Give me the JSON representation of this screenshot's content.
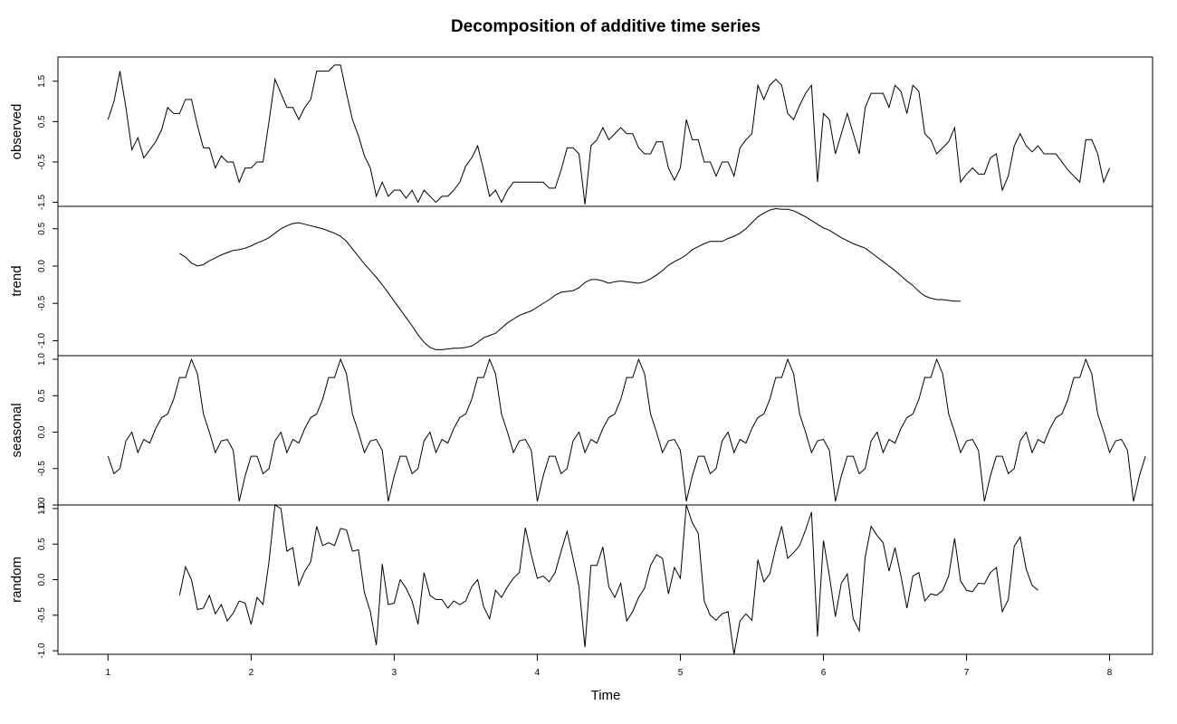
{
  "chart_data": {
    "type": "line",
    "title": "Decomposition of additive time series",
    "xlabel": "Time",
    "xlim": [
      0.65,
      8.3
    ],
    "x_ticks": [
      "1",
      "2",
      "3",
      "4",
      "5",
      "6",
      "7",
      "8"
    ],
    "x_start": 1,
    "x_step": 0.0416667,
    "panels": [
      {
        "name": "observed",
        "ylabel": "observed",
        "ylim": [
          -1.6,
          2.1
        ],
        "y_ticks": [
          -1.5,
          -0.5,
          0.5,
          1.5
        ],
        "y_tick_labels": [
          "-1.5",
          "-0.5",
          "0.5",
          "1.5"
        ],
        "offset": 0,
        "values": [
          0.55,
          1.0,
          1.75,
          0.85,
          -0.2,
          0.1,
          -0.4,
          -0.2,
          0.0,
          0.3,
          0.85,
          0.7,
          0.7,
          1.05,
          1.05,
          0.4,
          -0.15,
          -0.15,
          -0.65,
          -0.35,
          -0.5,
          -0.5,
          -1.0,
          -0.65,
          -0.65,
          -0.5,
          -0.5,
          0.5,
          1.55,
          1.2,
          0.85,
          0.85,
          0.55,
          0.85,
          1.05,
          1.75,
          1.75,
          1.75,
          1.9,
          1.9,
          1.2,
          0.55,
          0.15,
          -0.35,
          -0.65,
          -1.35,
          -1.0,
          -1.35,
          -1.2,
          -1.2,
          -1.4,
          -1.2,
          -1.5,
          -1.2,
          -1.35,
          -1.5,
          -1.35,
          -1.35,
          -1.2,
          -1.0,
          -0.6,
          -0.4,
          -0.1,
          -0.7,
          -1.35,
          -1.2,
          -1.5,
          -1.2,
          -1.0,
          -1.0,
          -1.0,
          -1.0,
          -1.0,
          -1.0,
          -1.15,
          -1.15,
          -0.7,
          -0.15,
          -0.15,
          -0.3,
          -1.55,
          -0.1,
          0.05,
          0.35,
          0.05,
          0.2,
          0.35,
          0.2,
          0.2,
          -0.15,
          -0.3,
          -0.3,
          0.0,
          0.0,
          -0.65,
          -0.95,
          -0.65,
          0.55,
          0.05,
          0.05,
          -0.5,
          -0.5,
          -0.85,
          -0.5,
          -0.5,
          -0.85,
          -0.15,
          0.05,
          0.2,
          1.4,
          1.05,
          1.4,
          1.55,
          1.4,
          0.7,
          0.55,
          0.9,
          1.2,
          1.4,
          -1.0,
          0.7,
          0.55,
          -0.3,
          0.2,
          0.7,
          0.2,
          -0.3,
          0.85,
          1.2,
          1.2,
          1.2,
          0.85,
          1.4,
          1.25,
          0.7,
          1.4,
          1.25,
          0.2,
          0.05,
          -0.3,
          -0.15,
          0.0,
          0.35,
          -1.0,
          -0.8,
          -0.65,
          -0.8,
          -0.8,
          -0.4,
          -0.3,
          -1.2,
          -0.85,
          -0.1,
          0.2,
          -0.1,
          -0.25,
          -0.1,
          -0.3,
          -0.3,
          -0.3,
          -0.5,
          -0.7,
          -0.85,
          -1.0,
          0.05,
          0.05,
          -0.3,
          -1.0,
          -0.65
        ]
      },
      {
        "name": "trend",
        "ylabel": "trend",
        "ylim": [
          -1.2,
          0.8
        ],
        "y_ticks": [
          -1.0,
          -0.5,
          0.0,
          0.5
        ],
        "y_tick_labels": [
          "-1.0",
          "-0.5",
          "0.0",
          "0.5"
        ],
        "offset": 12,
        "values": [
          0.17,
          0.12,
          0.04,
          0.0,
          0.02,
          0.07,
          0.11,
          0.15,
          0.18,
          0.21,
          0.22,
          0.24,
          0.27,
          0.31,
          0.34,
          0.38,
          0.44,
          0.5,
          0.54,
          0.57,
          0.58,
          0.56,
          0.54,
          0.52,
          0.5,
          0.47,
          0.44,
          0.4,
          0.33,
          0.23,
          0.13,
          0.03,
          -0.06,
          -0.15,
          -0.25,
          -0.36,
          -0.47,
          -0.58,
          -0.69,
          -0.8,
          -0.92,
          -1.02,
          -1.09,
          -1.12,
          -1.12,
          -1.11,
          -1.1,
          -1.1,
          -1.09,
          -1.07,
          -1.02,
          -0.96,
          -0.93,
          -0.9,
          -0.83,
          -0.76,
          -0.71,
          -0.66,
          -0.63,
          -0.6,
          -0.55,
          -0.5,
          -0.45,
          -0.39,
          -0.35,
          -0.34,
          -0.33,
          -0.29,
          -0.22,
          -0.18,
          -0.18,
          -0.2,
          -0.23,
          -0.21,
          -0.2,
          -0.21,
          -0.22,
          -0.23,
          -0.21,
          -0.17,
          -0.12,
          -0.06,
          0.01,
          0.06,
          0.1,
          0.15,
          0.22,
          0.26,
          0.3,
          0.33,
          0.33,
          0.33,
          0.37,
          0.4,
          0.44,
          0.5,
          0.58,
          0.66,
          0.71,
          0.75,
          0.77,
          0.76,
          0.76,
          0.74,
          0.7,
          0.66,
          0.61,
          0.56,
          0.51,
          0.48,
          0.43,
          0.38,
          0.34,
          0.3,
          0.27,
          0.24,
          0.18,
          0.12,
          0.06,
          0.0,
          -0.06,
          -0.13,
          -0.2,
          -0.26,
          -0.34,
          -0.4,
          -0.43,
          -0.45,
          -0.45,
          -0.46,
          -0.47,
          -0.47
        ]
      },
      {
        "name": "seasonal",
        "ylabel": "seasonal",
        "ylim": [
          -1.0,
          1.05
        ],
        "y_ticks": [
          -1.0,
          -0.5,
          0.0,
          0.5,
          1.0
        ],
        "y_tick_labels": [
          "-1.0",
          "-0.5",
          "0.0",
          "0.5",
          "1.0"
        ],
        "offset": 0,
        "cycle": [
          -0.33,
          -0.57,
          -0.5,
          -0.12,
          0.0,
          -0.28,
          -0.1,
          -0.15,
          0.05,
          0.2,
          0.25,
          0.45,
          0.75,
          0.75,
          1.0,
          0.8,
          0.25,
          0.0,
          -0.28,
          -0.12,
          -0.1,
          -0.25,
          -0.95,
          -0.6,
          -0.33
        ],
        "cycle_repeat": 7
      },
      {
        "name": "random",
        "ylabel": "random",
        "ylim": [
          -1.05,
          1.05
        ],
        "y_ticks": [
          -1.0,
          -0.5,
          0.0,
          0.5,
          1.0
        ],
        "y_tick_labels": [
          "-1.0",
          "-0.5",
          "0.0",
          "0.5",
          "1.0"
        ],
        "offset": 12,
        "values": [
          -0.22,
          0.18,
          0.0,
          -0.42,
          -0.4,
          -0.22,
          -0.48,
          -0.35,
          -0.58,
          -0.47,
          -0.3,
          -0.33,
          -0.63,
          -0.25,
          -0.35,
          0.25,
          1.05,
          1.0,
          0.4,
          0.45,
          -0.08,
          0.12,
          0.25,
          0.75,
          0.48,
          0.52,
          0.48,
          0.72,
          0.7,
          0.4,
          0.42,
          -0.18,
          -0.45,
          -0.92,
          0.22,
          -0.35,
          -0.33,
          0.0,
          -0.12,
          -0.3,
          -0.63,
          0.1,
          -0.22,
          -0.28,
          -0.28,
          -0.4,
          -0.3,
          -0.35,
          -0.3,
          -0.1,
          0.0,
          -0.38,
          -0.55,
          -0.15,
          -0.25,
          -0.1,
          0.02,
          0.1,
          0.73,
          0.35,
          0.02,
          0.05,
          -0.03,
          0.1,
          0.4,
          0.68,
          0.3,
          -0.1,
          -0.95,
          0.2,
          0.2,
          0.46,
          -0.1,
          -0.25,
          -0.05,
          -0.58,
          -0.45,
          -0.25,
          -0.12,
          0.2,
          0.35,
          0.3,
          -0.2,
          0.17,
          0.02,
          1.05,
          0.8,
          0.65,
          -0.3,
          -0.5,
          -0.57,
          -0.48,
          -0.45,
          -1.05,
          -0.58,
          -0.48,
          -0.57,
          0.28,
          -0.03,
          0.08,
          0.45,
          0.75,
          0.3,
          0.38,
          0.48,
          0.7,
          0.95,
          -0.8,
          0.55,
          0.05,
          -0.52,
          -0.05,
          0.08,
          -0.55,
          -0.72,
          0.32,
          0.75,
          0.62,
          0.52,
          0.12,
          0.45,
          0.05,
          -0.4,
          0.05,
          0.1,
          -0.3,
          -0.2,
          -0.22,
          -0.15,
          0.05,
          0.58,
          -0.02,
          -0.15,
          -0.17,
          -0.05,
          -0.06,
          0.1,
          0.17,
          -0.45,
          -0.28,
          0.47,
          0.6,
          0.15,
          -0.08,
          -0.15
        ]
      }
    ]
  }
}
